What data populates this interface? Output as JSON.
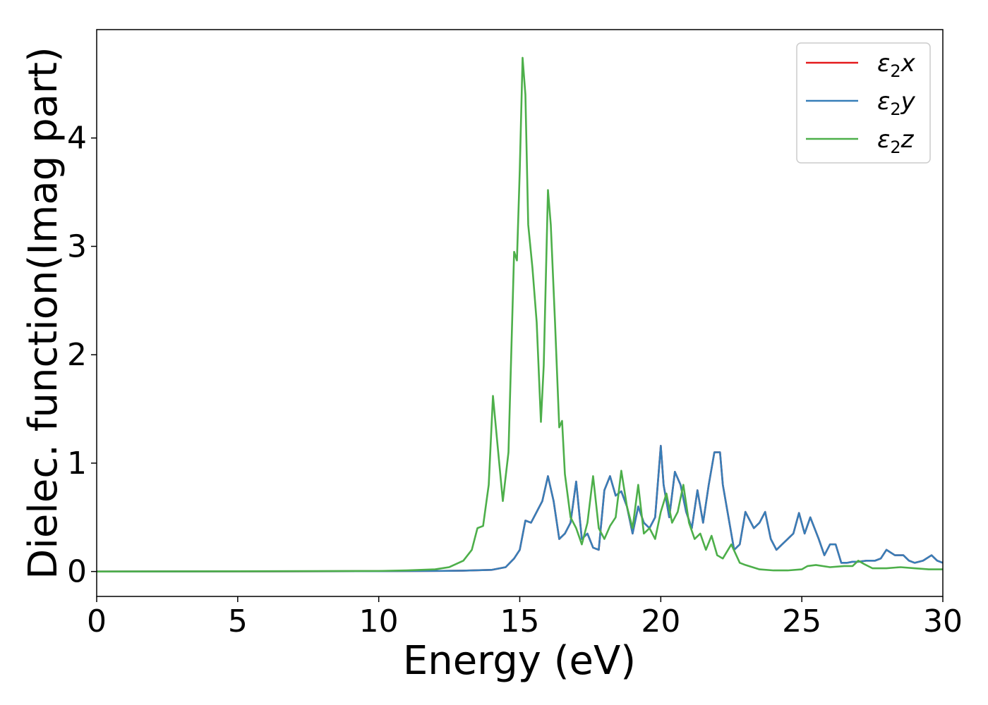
{
  "chart_data": {
    "type": "line",
    "xlabel": "Energy (eV)",
    "ylabel": "Dielec. function(Imag part)",
    "xlim": [
      0,
      30
    ],
    "ylim": [
      -0.23,
      5.0
    ],
    "xticks": [
      0,
      5,
      10,
      15,
      20,
      25,
      30
    ],
    "xtick_labels": [
      "0",
      "5",
      "10",
      "15",
      "20",
      "25",
      "30"
    ],
    "yticks": [
      0,
      1,
      2,
      3,
      4
    ],
    "ytick_labels": [
      "0",
      "1",
      "2",
      "3",
      "4"
    ],
    "grid": false,
    "legend_position": "top-right",
    "colors": {
      "x": "#e41a1c",
      "y": "#377eb8",
      "z": "#4daf4a"
    },
    "legend": [
      {
        "symbol": "ε",
        "sub": "2",
        "axis": "x"
      },
      {
        "symbol": "ε",
        "sub": "2",
        "axis": "y"
      },
      {
        "symbol": "ε",
        "sub": "2",
        "axis": "z"
      }
    ],
    "series": [
      {
        "key": "x",
        "x": [
          0,
          5,
          10,
          12,
          13,
          14,
          14.5,
          14.8,
          15,
          15.2,
          15.4,
          15.6,
          15.8,
          16,
          16.2,
          16.4,
          16.6,
          16.8,
          17,
          17.2,
          17.4,
          17.6,
          17.8,
          18,
          18.2,
          18.4,
          18.6,
          18.8,
          19,
          19.2,
          19.4,
          19.6,
          19.8,
          20,
          20.1,
          20.3,
          20.5,
          20.7,
          20.9,
          21.1,
          21.3,
          21.5,
          21.7,
          21.9,
          22.1,
          22.2,
          22.4,
          22.6,
          22.8,
          23,
          23.3,
          23.5,
          23.7,
          23.9,
          24.1,
          24.3,
          24.5,
          24.7,
          24.9,
          25.1,
          25.3,
          25.6,
          25.8,
          26,
          26.2,
          26.4,
          26.6,
          26.8,
          27,
          27.3,
          27.6,
          27.8,
          28,
          28.3,
          28.6,
          28.8,
          29,
          29.3,
          29.6,
          29.8,
          30
        ],
        "y": [
          0,
          0.001,
          0.003,
          0.005,
          0.008,
          0.015,
          0.04,
          0.12,
          0.2,
          0.47,
          0.45,
          0.55,
          0.65,
          0.88,
          0.65,
          0.3,
          0.35,
          0.45,
          0.83,
          0.3,
          0.35,
          0.22,
          0.2,
          0.75,
          0.88,
          0.7,
          0.74,
          0.6,
          0.35,
          0.6,
          0.45,
          0.4,
          0.5,
          1.16,
          0.8,
          0.5,
          0.92,
          0.8,
          0.55,
          0.4,
          0.75,
          0.45,
          0.8,
          1.1,
          1.1,
          0.8,
          0.5,
          0.2,
          0.25,
          0.55,
          0.4,
          0.45,
          0.55,
          0.3,
          0.2,
          0.25,
          0.3,
          0.35,
          0.54,
          0.35,
          0.5,
          0.3,
          0.15,
          0.25,
          0.25,
          0.08,
          0.08,
          0.09,
          0.09,
          0.1,
          0.1,
          0.12,
          0.2,
          0.15,
          0.15,
          0.1,
          0.08,
          0.1,
          0.15,
          0.1,
          0.08
        ]
      },
      {
        "key": "y",
        "x": [
          0,
          5,
          10,
          12,
          13,
          14,
          14.5,
          14.8,
          15,
          15.2,
          15.4,
          15.6,
          15.8,
          16,
          16.2,
          16.4,
          16.6,
          16.8,
          17,
          17.2,
          17.4,
          17.6,
          17.8,
          18,
          18.2,
          18.4,
          18.6,
          18.8,
          19,
          19.2,
          19.4,
          19.6,
          19.8,
          20,
          20.1,
          20.3,
          20.5,
          20.7,
          20.9,
          21.1,
          21.3,
          21.5,
          21.7,
          21.9,
          22.1,
          22.2,
          22.4,
          22.6,
          22.8,
          23,
          23.3,
          23.5,
          23.7,
          23.9,
          24.1,
          24.3,
          24.5,
          24.7,
          24.9,
          25.1,
          25.3,
          25.6,
          25.8,
          26,
          26.2,
          26.4,
          26.6,
          26.8,
          27,
          27.3,
          27.6,
          27.8,
          28,
          28.3,
          28.6,
          28.8,
          29,
          29.3,
          29.6,
          29.8,
          30
        ],
        "y": [
          0,
          0.001,
          0.003,
          0.005,
          0.008,
          0.015,
          0.04,
          0.12,
          0.2,
          0.47,
          0.45,
          0.55,
          0.65,
          0.88,
          0.65,
          0.3,
          0.35,
          0.45,
          0.83,
          0.3,
          0.35,
          0.22,
          0.2,
          0.75,
          0.88,
          0.7,
          0.74,
          0.6,
          0.35,
          0.6,
          0.45,
          0.4,
          0.5,
          1.16,
          0.8,
          0.5,
          0.92,
          0.8,
          0.55,
          0.4,
          0.75,
          0.45,
          0.8,
          1.1,
          1.1,
          0.8,
          0.5,
          0.2,
          0.25,
          0.55,
          0.4,
          0.45,
          0.55,
          0.3,
          0.2,
          0.25,
          0.3,
          0.35,
          0.54,
          0.35,
          0.5,
          0.3,
          0.15,
          0.25,
          0.25,
          0.08,
          0.08,
          0.09,
          0.09,
          0.1,
          0.1,
          0.12,
          0.2,
          0.15,
          0.15,
          0.1,
          0.08,
          0.1,
          0.15,
          0.1,
          0.08
        ]
      },
      {
        "key": "z",
        "x": [
          0,
          5,
          10,
          11,
          12,
          12.5,
          13,
          13.3,
          13.5,
          13.7,
          13.9,
          14.05,
          14.2,
          14.4,
          14.6,
          14.8,
          14.9,
          15,
          15.1,
          15.2,
          15.3,
          15.45,
          15.6,
          15.75,
          15.85,
          16,
          16.1,
          16.25,
          16.4,
          16.5,
          16.6,
          16.8,
          17,
          17.2,
          17.4,
          17.6,
          17.8,
          18,
          18.2,
          18.4,
          18.6,
          18.8,
          19,
          19.2,
          19.4,
          19.6,
          19.8,
          20,
          20.2,
          20.4,
          20.6,
          20.8,
          21,
          21.2,
          21.4,
          21.6,
          21.8,
          22,
          22.2,
          22.5,
          22.8,
          23,
          23.5,
          24,
          24.5,
          25,
          25.2,
          25.5,
          26,
          26.5,
          26.8,
          27,
          27.2,
          27.5,
          28,
          28.5,
          29,
          29.5,
          30
        ],
        "y": [
          0,
          0.002,
          0.005,
          0.01,
          0.02,
          0.04,
          0.1,
          0.2,
          0.4,
          0.42,
          0.8,
          1.62,
          1.2,
          0.65,
          1.1,
          2.95,
          2.87,
          3.7,
          4.74,
          4.4,
          3.2,
          2.8,
          2.3,
          1.38,
          1.9,
          3.52,
          3.2,
          2.3,
          1.33,
          1.39,
          0.9,
          0.5,
          0.4,
          0.25,
          0.45,
          0.88,
          0.4,
          0.3,
          0.42,
          0.5,
          0.93,
          0.6,
          0.4,
          0.8,
          0.35,
          0.4,
          0.3,
          0.55,
          0.72,
          0.45,
          0.55,
          0.8,
          0.45,
          0.3,
          0.35,
          0.2,
          0.33,
          0.15,
          0.12,
          0.25,
          0.08,
          0.06,
          0.02,
          0.01,
          0.01,
          0.02,
          0.05,
          0.06,
          0.04,
          0.05,
          0.05,
          0.1,
          0.07,
          0.03,
          0.03,
          0.04,
          0.03,
          0.02,
          0.02
        ]
      }
    ]
  }
}
